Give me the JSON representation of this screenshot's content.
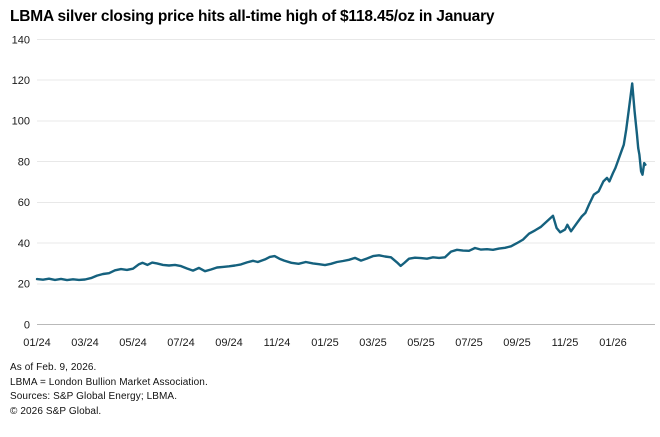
{
  "title": "LBMA silver closing price hits all-time high of $118.45/oz in January",
  "colors": {
    "line": "#15617E",
    "grid": "#e8e8e8",
    "baseline": "#b9b9b9",
    "tick_text": "#1a1a1a"
  },
  "footer": {
    "lines": [
      "As of Feb. 9, 2026.",
      "LBMA = London Bullion Market Association.",
      "Sources: S&P Global Energy; LBMA.",
      "© 2026 S&P Global."
    ]
  },
  "chart_data": {
    "type": "line",
    "title": "LBMA silver closing price hits all-time high of $118.45/oz in January",
    "ylabel": "",
    "xlabel": "",
    "ylim": [
      0,
      140
    ],
    "y_ticks": [
      0,
      20,
      40,
      60,
      80,
      100,
      120,
      140
    ],
    "x_tick_labels": [
      "01/24",
      "03/24",
      "05/24",
      "07/24",
      "09/24",
      "11/24",
      "01/25",
      "03/25",
      "05/25",
      "07/25",
      "09/25",
      "11/25",
      "01/26"
    ],
    "x_tick_months": [
      0,
      2,
      4,
      6,
      8,
      10,
      12,
      14,
      16,
      18,
      20,
      22,
      24
    ],
    "x_unit": "months since Jan 2024",
    "grid": "horizontal only",
    "legend": "none",
    "peak_value": 118.45,
    "peak_month_label": "January 2026",
    "as_of": "Feb. 9, 2026",
    "series": [
      {
        "name": "LBMA silver closing price ($/oz)",
        "points": [
          [
            0.0,
            22.3
          ],
          [
            0.25,
            22.0
          ],
          [
            0.5,
            22.5
          ],
          [
            0.75,
            21.9
          ],
          [
            1.0,
            22.4
          ],
          [
            1.25,
            21.8
          ],
          [
            1.5,
            22.2
          ],
          [
            1.75,
            21.9
          ],
          [
            2.0,
            22.1
          ],
          [
            2.25,
            22.8
          ],
          [
            2.5,
            24.0
          ],
          [
            2.75,
            24.8
          ],
          [
            3.0,
            25.2
          ],
          [
            3.25,
            26.6
          ],
          [
            3.5,
            27.2
          ],
          [
            3.75,
            26.8
          ],
          [
            4.0,
            27.4
          ],
          [
            4.25,
            29.6
          ],
          [
            4.4,
            30.3
          ],
          [
            4.6,
            29.3
          ],
          [
            4.8,
            30.4
          ],
          [
            5.0,
            30.0
          ],
          [
            5.25,
            29.3
          ],
          [
            5.5,
            29.0
          ],
          [
            5.75,
            29.3
          ],
          [
            6.0,
            28.7
          ],
          [
            6.25,
            27.5
          ],
          [
            6.5,
            26.5
          ],
          [
            6.75,
            27.8
          ],
          [
            7.0,
            26.2
          ],
          [
            7.25,
            27.0
          ],
          [
            7.5,
            28.0
          ],
          [
            7.75,
            28.3
          ],
          [
            8.0,
            28.6
          ],
          [
            8.25,
            29.0
          ],
          [
            8.5,
            29.5
          ],
          [
            8.75,
            30.5
          ],
          [
            9.0,
            31.3
          ],
          [
            9.2,
            30.7
          ],
          [
            9.5,
            32.0
          ],
          [
            9.7,
            33.2
          ],
          [
            9.9,
            33.6
          ],
          [
            10.1,
            32.3
          ],
          [
            10.3,
            31.4
          ],
          [
            10.6,
            30.3
          ],
          [
            10.9,
            29.8
          ],
          [
            11.2,
            30.7
          ],
          [
            11.5,
            30.0
          ],
          [
            11.75,
            29.6
          ],
          [
            12.0,
            29.2
          ],
          [
            12.25,
            29.8
          ],
          [
            12.5,
            30.7
          ],
          [
            12.75,
            31.2
          ],
          [
            13.0,
            31.8
          ],
          [
            13.25,
            32.7
          ],
          [
            13.5,
            31.4
          ],
          [
            13.75,
            32.4
          ],
          [
            14.0,
            33.6
          ],
          [
            14.25,
            34.0
          ],
          [
            14.5,
            33.4
          ],
          [
            14.75,
            33.0
          ],
          [
            15.0,
            30.5
          ],
          [
            15.15,
            28.8
          ],
          [
            15.3,
            30.2
          ],
          [
            15.5,
            32.3
          ],
          [
            15.75,
            32.8
          ],
          [
            16.0,
            32.6
          ],
          [
            16.25,
            32.3
          ],
          [
            16.5,
            33.0
          ],
          [
            16.75,
            32.7
          ],
          [
            17.0,
            33.0
          ],
          [
            17.25,
            35.8
          ],
          [
            17.5,
            36.7
          ],
          [
            17.75,
            36.3
          ],
          [
            18.0,
            36.2
          ],
          [
            18.25,
            37.6
          ],
          [
            18.5,
            36.8
          ],
          [
            18.75,
            37.0
          ],
          [
            19.0,
            36.7
          ],
          [
            19.25,
            37.3
          ],
          [
            19.5,
            37.7
          ],
          [
            19.75,
            38.4
          ],
          [
            20.0,
            40.0
          ],
          [
            20.25,
            41.7
          ],
          [
            20.5,
            44.6
          ],
          [
            20.75,
            46.2
          ],
          [
            21.0,
            48.0
          ],
          [
            21.25,
            50.7
          ],
          [
            21.5,
            53.4
          ],
          [
            21.65,
            47.4
          ],
          [
            21.8,
            45.3
          ],
          [
            22.0,
            46.6
          ],
          [
            22.1,
            49.0
          ],
          [
            22.25,
            45.8
          ],
          [
            22.5,
            49.9
          ],
          [
            22.7,
            53.1
          ],
          [
            22.85,
            54.8
          ],
          [
            23.0,
            58.9
          ],
          [
            23.2,
            63.8
          ],
          [
            23.4,
            65.4
          ],
          [
            23.6,
            70.3
          ],
          [
            23.75,
            72.0
          ],
          [
            23.85,
            70.3
          ],
          [
            24.0,
            74.4
          ],
          [
            24.1,
            76.9
          ],
          [
            24.2,
            80.1
          ],
          [
            24.35,
            85.1
          ],
          [
            24.45,
            88.3
          ],
          [
            24.55,
            95.7
          ],
          [
            24.65,
            104.7
          ],
          [
            24.8,
            118.45
          ],
          [
            24.9,
            104.7
          ],
          [
            25.0,
            93.2
          ],
          [
            25.05,
            86.7
          ],
          [
            25.1,
            83.4
          ],
          [
            25.17,
            75.2
          ],
          [
            25.23,
            73.6
          ],
          [
            25.3,
            79.3
          ],
          [
            25.35,
            78.5
          ]
        ]
      }
    ]
  }
}
